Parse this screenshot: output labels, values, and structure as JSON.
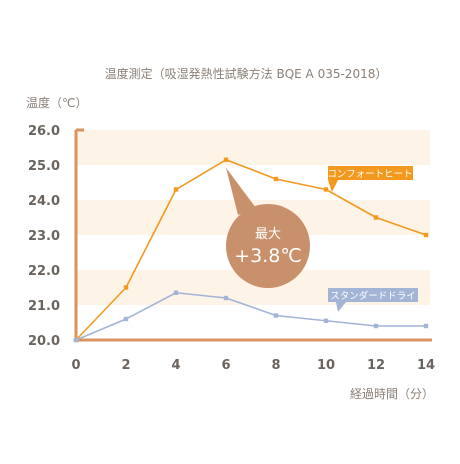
{
  "chart_data": {
    "type": "line",
    "title": "温度測定（吸湿発熱性試験方法 BQE A 035-2018）",
    "ylabel": "温度（℃）",
    "xlabel": "経過時間（分）",
    "x": [
      0,
      2,
      4,
      6,
      8,
      10,
      12,
      14
    ],
    "x_ticks": [
      "0",
      "2",
      "4",
      "6",
      "8",
      "10",
      "12",
      "14"
    ],
    "y_ticks": [
      "20.0",
      "21.0",
      "22.0",
      "23.0",
      "24.0",
      "25.0",
      "26.0"
    ],
    "xlim": [
      0,
      14
    ],
    "ylim": [
      20,
      26
    ],
    "grid": "horizontal bands",
    "series": [
      {
        "name": "コンフォートヒート",
        "color": "#f39a1e",
        "values": [
          20.0,
          21.5,
          24.3,
          25.15,
          24.6,
          24.3,
          23.5,
          23.0
        ]
      },
      {
        "name": "スタンダードドライ",
        "color": "#a3b4d6",
        "values": [
          20.0,
          20.6,
          21.35,
          21.2,
          20.7,
          20.55,
          20.4,
          20.4
        ]
      }
    ],
    "annotation": {
      "line1": "最大",
      "line2": "+3.8℃",
      "color": "#c8906b"
    },
    "colors": {
      "axis": "#d9935e",
      "band": "#fdf3e6",
      "text": "#8a7f76",
      "tick_text": "#6b645e"
    }
  }
}
